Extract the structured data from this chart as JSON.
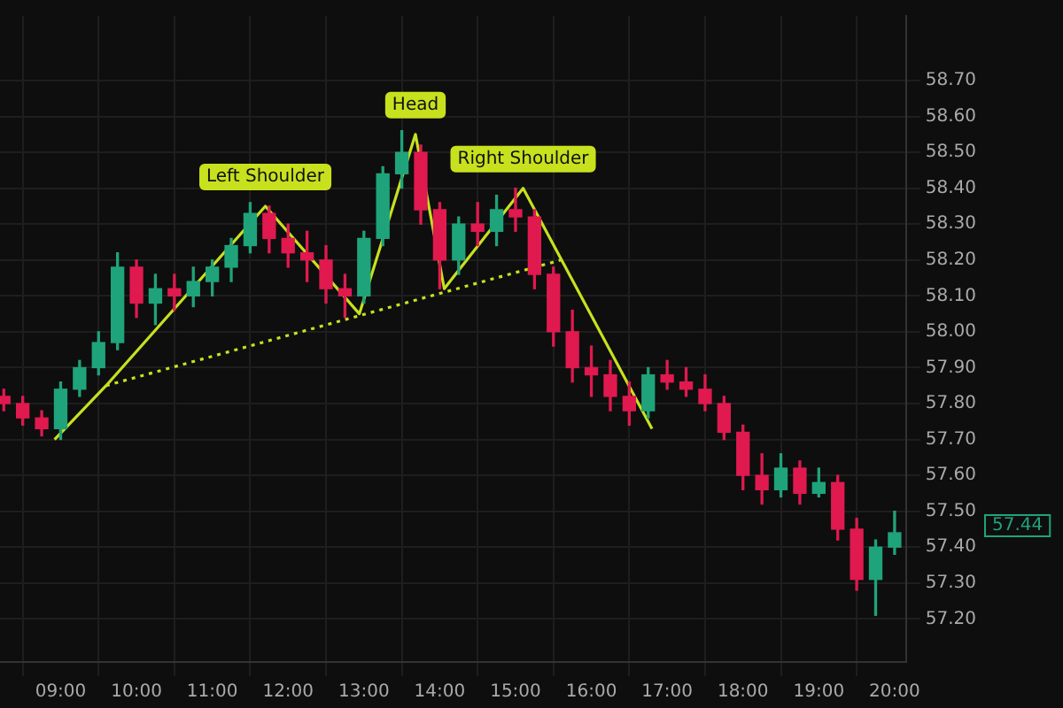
{
  "chart_data": {
    "type": "candlestick",
    "x": [
      8.25,
      8.5,
      8.75,
      9,
      9.25,
      9.5,
      9.75,
      10,
      10.25,
      10.5,
      10.75,
      11,
      11.25,
      11.5,
      11.75,
      12,
      12.25,
      12.5,
      12.75,
      13,
      13.25,
      13.5,
      13.75,
      14,
      14.25,
      14.5,
      14.75,
      15,
      15.25,
      15.5,
      15.75,
      16,
      16.25,
      16.5,
      16.75,
      17,
      17.25,
      17.5,
      17.75,
      18,
      18.25,
      18.5,
      18.75,
      19,
      19.25,
      19.5,
      19.75,
      20
    ],
    "ohlc": [
      [
        57.82,
        57.84,
        57.78,
        57.8
      ],
      [
        57.8,
        57.82,
        57.74,
        57.76
      ],
      [
        57.76,
        57.78,
        57.71,
        57.73
      ],
      [
        57.73,
        57.86,
        57.7,
        57.84
      ],
      [
        57.84,
        57.92,
        57.82,
        57.9
      ],
      [
        57.9,
        58,
        57.88,
        57.97
      ],
      [
        57.97,
        58.22,
        57.95,
        58.18
      ],
      [
        58.18,
        58.2,
        58.04,
        58.08
      ],
      [
        58.08,
        58.16,
        58.02,
        58.12
      ],
      [
        58.12,
        58.16,
        58.06,
        58.1
      ],
      [
        58.1,
        58.18,
        58.07,
        58.14
      ],
      [
        58.14,
        58.2,
        58.1,
        58.18
      ],
      [
        58.18,
        58.26,
        58.14,
        58.24
      ],
      [
        58.24,
        58.36,
        58.22,
        58.33
      ],
      [
        58.33,
        58.35,
        58.22,
        58.26
      ],
      [
        58.26,
        58.3,
        58.18,
        58.22
      ],
      [
        58.22,
        58.28,
        58.14,
        58.2
      ],
      [
        58.2,
        58.24,
        58.08,
        58.12
      ],
      [
        58.12,
        58.16,
        58.04,
        58.1
      ],
      [
        58.1,
        58.28,
        58.08,
        58.26
      ],
      [
        58.26,
        58.46,
        58.24,
        58.44
      ],
      [
        58.44,
        58.56,
        58.4,
        58.5
      ],
      [
        58.5,
        58.52,
        58.3,
        58.34
      ],
      [
        58.34,
        58.36,
        58.12,
        58.2
      ],
      [
        58.2,
        58.32,
        58.16,
        58.3
      ],
      [
        58.3,
        58.36,
        58.24,
        58.28
      ],
      [
        58.28,
        58.38,
        58.24,
        58.34
      ],
      [
        58.34,
        58.4,
        58.28,
        58.32
      ],
      [
        58.32,
        58.34,
        58.12,
        58.16
      ],
      [
        58.16,
        58.18,
        57.96,
        58
      ],
      [
        58,
        58.06,
        57.86,
        57.9
      ],
      [
        57.9,
        57.96,
        57.82,
        57.88
      ],
      [
        57.88,
        57.92,
        57.78,
        57.82
      ],
      [
        57.82,
        57.86,
        57.74,
        57.78
      ],
      [
        57.78,
        57.9,
        57.76,
        57.88
      ],
      [
        57.88,
        57.92,
        57.84,
        57.86
      ],
      [
        57.86,
        57.9,
        57.82,
        57.84
      ],
      [
        57.84,
        57.88,
        57.78,
        57.8
      ],
      [
        57.8,
        57.82,
        57.7,
        57.72
      ],
      [
        57.72,
        57.74,
        57.56,
        57.6
      ],
      [
        57.6,
        57.66,
        57.52,
        57.56
      ],
      [
        57.56,
        57.66,
        57.54,
        57.62
      ],
      [
        57.62,
        57.64,
        57.52,
        57.55
      ],
      [
        57.55,
        57.62,
        57.54,
        57.58
      ],
      [
        57.58,
        57.6,
        57.42,
        57.45
      ],
      [
        57.45,
        57.48,
        57.28,
        57.31
      ],
      [
        57.31,
        57.42,
        57.21,
        57.4
      ],
      [
        57.4,
        57.5,
        57.38,
        57.44
      ]
    ],
    "colors": [
      "#e0194f",
      "#e0194f",
      "#e0194f",
      "#1fa37a",
      "#1fa37a",
      "#1fa37a",
      "#1fa37a",
      "#e0194f",
      "#1fa37a",
      "#e0194f",
      "#1fa37a",
      "#1fa37a",
      "#1fa37a",
      "#1fa37a",
      "#e0194f",
      "#e0194f",
      "#e0194f",
      "#e0194f",
      "#e0194f",
      "#1fa37a",
      "#1fa37a",
      "#1fa37a",
      "#e0194f",
      "#e0194f",
      "#1fa37a",
      "#e0194f",
      "#1fa37a",
      "#e0194f",
      "#e0194f",
      "#e0194f",
      "#e0194f",
      "#e0194f",
      "#e0194f",
      "#e0194f",
      "#1fa37a",
      "#e0194f",
      "#e0194f",
      "#e0194f",
      "#e0194f",
      "#e0194f",
      "#e0194f",
      "#1fa37a",
      "#e0194f",
      "#1fa37a",
      "#e0194f",
      "#e0194f",
      "#1fa37a",
      "#1fa37a"
    ],
    "series": [
      {
        "type": "line",
        "x": [
          8.92,
          9.6,
          11.7,
          12.94,
          13.68,
          14.06,
          15.1,
          16.8
        ],
        "values": [
          57.7,
          57.85,
          58.35,
          58.05,
          58.55,
          58.12,
          58.4,
          57.73
        ],
        "color": "#c8e11e"
      },
      {
        "type": "line",
        "x": [
          9.6,
          15.6
        ],
        "values": [
          57.85,
          58.2
        ],
        "color": "#c8e11e",
        "line_style": "dotted"
      }
    ],
    "annotations": [
      {
        "text": "Left Shoulder",
        "x": 11.7,
        "y": 58.35
      },
      {
        "text": "Head",
        "x": 13.68,
        "y": 58.55
      },
      {
        "text": "Right Shoulder",
        "x": 15.1,
        "y": 58.4
      },
      "57.44"
    ],
    "xlim": [
      8.2,
      20.15
    ],
    "xticks": [
      {
        "value": 9,
        "label": "09:00"
      },
      {
        "value": 10,
        "label": "10:00"
      },
      {
        "value": 11,
        "label": "11:00"
      },
      {
        "value": 12,
        "label": "12:00"
      },
      {
        "value": 13,
        "label": "13:00"
      },
      {
        "value": 14,
        "label": "14:00"
      },
      {
        "value": 15,
        "label": "15:00"
      },
      {
        "value": 16,
        "label": "16:00"
      },
      {
        "value": 17,
        "label": "17:00"
      },
      {
        "value": 18,
        "label": "18:00"
      },
      {
        "value": 19,
        "label": "19:00"
      },
      {
        "value": 20,
        "label": "20:00"
      }
    ],
    "ylim": [
      57.08,
      58.88
    ],
    "yticks": [
      {
        "value": 57.2,
        "label": "57.20"
      },
      {
        "value": 57.3,
        "label": "57.30"
      },
      {
        "value": 57.4,
        "label": "57.40"
      },
      {
        "value": 57.5,
        "label": "57.50"
      },
      {
        "value": 57.6,
        "label": "57.60"
      },
      {
        "value": 57.7,
        "label": "57.70"
      },
      {
        "value": 57.8,
        "label": "57.80"
      },
      {
        "value": 57.9,
        "label": "57.90"
      },
      {
        "value": 58,
        "label": "58.00"
      },
      {
        "value": 58.1,
        "label": "58.10"
      },
      {
        "value": 58.2,
        "label": "58.20"
      },
      {
        "value": 58.3,
        "label": "58.30"
      },
      {
        "value": 58.4,
        "label": "58.40"
      },
      {
        "value": 58.5,
        "label": "58.50"
      },
      {
        "value": 58.6,
        "label": "58.60"
      },
      {
        "value": 58.7,
        "label": "58.70"
      }
    ],
    "grid": true,
    "legend": false
  }
}
